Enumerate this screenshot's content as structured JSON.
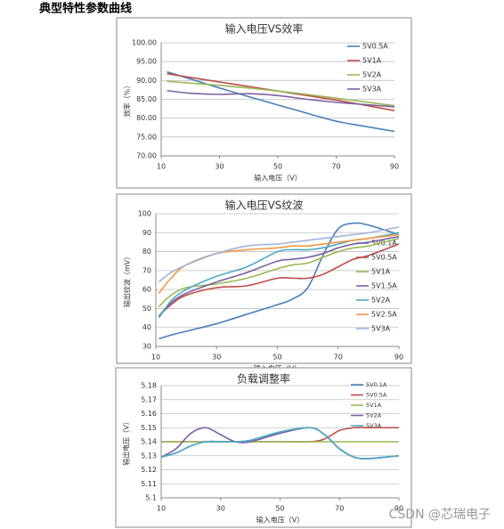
{
  "heading": "典型特性参数曲线",
  "watermark": "CSDN @芯瑞电子",
  "chart_data": [
    {
      "type": "line",
      "title": "输入电压VS效率",
      "x_label": "输入电压（V）",
      "y_label": "效率（%）",
      "xlim": [
        10,
        90
      ],
      "xticks": [
        10,
        30,
        50,
        70,
        90
      ],
      "ylim": [
        70,
        100
      ],
      "yticks": [
        {
          "value": 70,
          "label": "70.00"
        },
        {
          "value": 75,
          "label": "75.00"
        },
        {
          "value": 80,
          "label": "80.00"
        },
        {
          "value": 85,
          "label": "85.00"
        },
        {
          "value": 90,
          "label": "90.00"
        },
        {
          "value": 95,
          "label": "95.00"
        },
        {
          "value": 100,
          "label": "100.00"
        }
      ],
      "grid": true,
      "x": [
        12,
        20,
        30,
        40,
        50,
        60,
        70,
        80,
        90
      ],
      "series": [
        {
          "name": "5V0.5A",
          "color": "#4a7ebb",
          "values": [
            92.3,
            90.4,
            88.0,
            85.7,
            83.5,
            81.3,
            79.2,
            77.8,
            76.5
          ]
        },
        {
          "name": "5V1A",
          "color": "#be4b48",
          "values": [
            91.8,
            90.8,
            89.6,
            88.4,
            87.2,
            86.0,
            84.8,
            83.4,
            82.0
          ]
        },
        {
          "name": "5V2A",
          "color": "#98b954",
          "values": [
            89.8,
            89.3,
            88.7,
            88.0,
            87.2,
            86.3,
            85.3,
            84.3,
            83.3
          ]
        },
        {
          "name": "5V3A",
          "color": "#7d60a0",
          "values": [
            87.3,
            86.6,
            86.3,
            86.5,
            86.0,
            85.0,
            84.2,
            83.6,
            83.0
          ]
        }
      ]
    },
    {
      "type": "line",
      "title": "输入电压VS纹波",
      "x_label": "输入电压（V）",
      "y_label": "输出纹波（mV）",
      "xlim": [
        10,
        90
      ],
      "xticks": [
        10,
        30,
        50,
        70,
        90
      ],
      "ylim": [
        30,
        100
      ],
      "yticks": [
        30,
        40,
        50,
        60,
        70,
        80,
        90,
        100
      ],
      "grid": true,
      "x": [
        11,
        15,
        20,
        30,
        40,
        50,
        55,
        60,
        65,
        70,
        75,
        80,
        90
      ],
      "series": [
        {
          "name": "5V0.1A",
          "color": "#4a7ebb",
          "values": [
            34,
            36,
            38,
            42,
            47,
            52,
            55,
            61,
            78,
            92,
            95,
            94,
            89
          ]
        },
        {
          "name": "5V0.5A",
          "color": "#be4b48",
          "values": [
            46,
            52,
            57,
            61,
            62,
            66,
            66,
            66,
            68,
            72,
            76,
            78,
            84
          ]
        },
        {
          "name": "5V1A",
          "color": "#98b954",
          "values": [
            51,
            57,
            61,
            63,
            66,
            71,
            73,
            74,
            77,
            80,
            82,
            83,
            87
          ]
        },
        {
          "name": "5V1.5A",
          "color": "#7d60a0",
          "values": [
            46,
            53,
            58,
            64,
            69,
            75,
            76,
            77,
            79,
            82,
            84,
            85,
            88
          ]
        },
        {
          "name": "5V2A",
          "color": "#4bacc6",
          "values": [
            45,
            54,
            60,
            67,
            72,
            80,
            81,
            81,
            82,
            84,
            86,
            87,
            90
          ]
        },
        {
          "name": "5V2.5A",
          "color": "#f79646",
          "values": [
            58,
            66,
            73,
            79,
            81,
            82,
            83,
            83,
            84,
            85,
            86,
            87,
            89
          ]
        },
        {
          "name": "5V3A",
          "color": "#a2b4dc",
          "values": [
            64,
            69,
            73,
            79,
            83,
            84,
            85,
            86,
            87,
            88,
            89,
            90,
            93
          ]
        }
      ]
    },
    {
      "type": "line",
      "title": "负载调整率",
      "x_label": "输入电压（V）",
      "y_label": "输出电压（V）",
      "xlim": [
        10,
        90
      ],
      "xticks": [
        10,
        30,
        50,
        70,
        90
      ],
      "ylim": [
        5.1,
        5.18
      ],
      "yticks": [
        5.1,
        5.11,
        5.12,
        5.13,
        5.14,
        5.15,
        5.16,
        5.17,
        5.18
      ],
      "grid": true,
      "x": [
        10,
        15,
        20,
        25,
        30,
        35,
        40,
        50,
        60,
        65,
        70,
        75,
        80,
        90
      ],
      "series": [
        {
          "name": "5V0.1A",
          "color": "#4a7ebb",
          "values": [
            5.129,
            5.132,
            5.137,
            5.14,
            5.14,
            5.14,
            5.141,
            5.147,
            5.15,
            5.145,
            5.135,
            5.129,
            5.128,
            5.13
          ]
        },
        {
          "name": "5V0.5A",
          "color": "#be4b48",
          "values": [
            5.14,
            5.14,
            5.14,
            5.14,
            5.14,
            5.14,
            5.14,
            5.14,
            5.14,
            5.142,
            5.148,
            5.15,
            5.15,
            5.15
          ]
        },
        {
          "name": "5V1A",
          "color": "#98b954",
          "values": [
            5.14,
            5.14,
            5.14,
            5.14,
            5.14,
            5.14,
            5.14,
            5.14,
            5.14,
            5.14,
            5.14,
            5.14,
            5.14,
            5.14
          ]
        },
        {
          "name": "5V2A",
          "color": "#7d60a0",
          "values": [
            5.129,
            5.135,
            5.146,
            5.15,
            5.145,
            5.14,
            5.14,
            5.146,
            5.15,
            5.145,
            5.135,
            5.129,
            5.128,
            5.13
          ]
        },
        {
          "name": "5V3A",
          "color": "#4bacc6",
          "values": [
            5.129,
            5.132,
            5.137,
            5.14,
            5.14,
            5.14,
            5.141,
            5.147,
            5.15,
            5.145,
            5.135,
            5.129,
            5.128,
            5.13
          ]
        }
      ]
    }
  ]
}
